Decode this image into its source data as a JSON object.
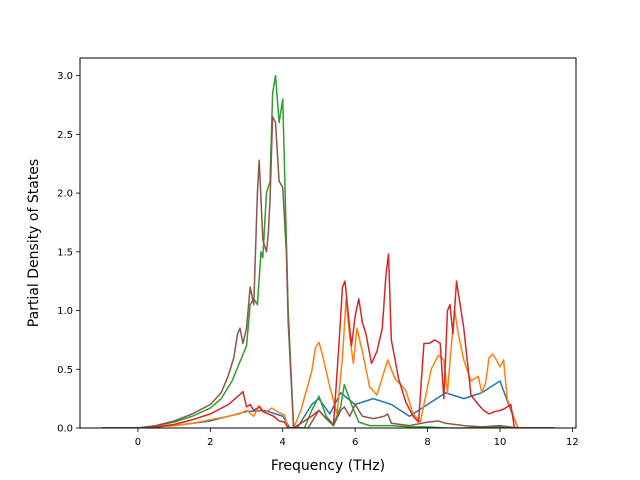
{
  "chart_data": {
    "type": "line",
    "title": "",
    "xlabel": "Frequency (THz)",
    "ylabel": "Partial Density of States",
    "xlim": [
      -1.6,
      12.1
    ],
    "ylim": [
      0.0,
      3.15
    ],
    "xticks": [
      0,
      2,
      4,
      6,
      8,
      10,
      12
    ],
    "xtick_labels": [
      "0",
      "2",
      "4",
      "6",
      "8",
      "10",
      "12"
    ],
    "yticks": [
      0.0,
      0.5,
      1.0,
      1.5,
      2.0,
      2.5,
      3.0
    ],
    "ytick_labels": [
      "0.0",
      "0.5",
      "1.0",
      "1.5",
      "2.0",
      "2.5",
      "3.0"
    ],
    "grid": false,
    "legend": "none",
    "series": [
      {
        "color": "#1f77b4",
        "x": [
          -1.0,
          0.0,
          1.0,
          2.0,
          3.0,
          3.5,
          4.0,
          4.2,
          4.4,
          4.8,
          5.0,
          5.3,
          5.6,
          6.0,
          6.5,
          7.0,
          7.5,
          8.0,
          8.5,
          9.0,
          9.5,
          10.0,
          10.3,
          10.5,
          11.5
        ],
        "y": [
          0.0,
          0.0,
          0.02,
          0.06,
          0.14,
          0.15,
          0.1,
          0.0,
          0.0,
          0.2,
          0.25,
          0.12,
          0.3,
          0.2,
          0.25,
          0.2,
          0.1,
          0.2,
          0.3,
          0.25,
          0.3,
          0.4,
          0.15,
          0.0,
          0.0
        ]
      },
      {
        "color": "#ff7f0e",
        "x": [
          -1.0,
          0.0,
          0.5,
          1.0,
          1.5,
          2.0,
          2.5,
          2.8,
          3.0,
          3.2,
          3.35,
          3.5,
          3.7,
          3.9,
          4.05,
          4.15,
          4.3,
          4.5,
          4.8,
          4.9,
          5.0,
          5.1,
          5.3,
          5.5,
          5.65,
          5.75,
          5.85,
          5.95,
          6.05,
          6.2,
          6.4,
          6.6,
          6.8,
          6.9,
          7.1,
          7.4,
          7.6,
          7.8,
          8.0,
          8.1,
          8.3,
          8.45,
          8.55,
          8.65,
          8.75,
          8.85,
          9.0,
          9.2,
          9.4,
          9.5,
          9.6,
          9.7,
          9.8,
          9.9,
          10.0,
          10.1,
          10.2,
          10.4,
          10.5,
          11.5
        ],
        "y": [
          0.0,
          0.0,
          0.01,
          0.02,
          0.04,
          0.07,
          0.1,
          0.12,
          0.15,
          0.1,
          0.19,
          0.13,
          0.17,
          0.13,
          0.11,
          0.0,
          0.0,
          0.15,
          0.48,
          0.68,
          0.73,
          0.62,
          0.35,
          0.12,
          0.6,
          1.1,
          0.78,
          0.55,
          0.85,
          0.65,
          0.35,
          0.28,
          0.48,
          0.58,
          0.42,
          0.32,
          0.12,
          0.05,
          0.35,
          0.5,
          0.62,
          0.58,
          0.3,
          0.68,
          1.0,
          0.8,
          0.58,
          0.4,
          0.44,
          0.3,
          0.38,
          0.6,
          0.63,
          0.58,
          0.52,
          0.58,
          0.25,
          0.08,
          0.0,
          0.0
        ]
      },
      {
        "color": "#2ca02c",
        "x": [
          -1.0,
          0.0,
          0.5,
          1.0,
          1.5,
          2.0,
          2.3,
          2.6,
          2.8,
          3.0,
          3.1,
          3.2,
          3.3,
          3.4,
          3.45,
          3.55,
          3.65,
          3.72,
          3.8,
          3.9,
          4.0,
          4.1,
          4.15,
          4.3,
          4.6,
          4.8,
          5.0,
          5.2,
          5.4,
          5.6,
          5.7,
          5.9,
          6.1,
          6.4,
          7.0,
          7.5,
          8.0,
          8.5,
          9.0,
          9.5,
          10.0,
          10.5,
          11.5
        ],
        "y": [
          0.0,
          0.0,
          0.02,
          0.05,
          0.1,
          0.17,
          0.25,
          0.4,
          0.55,
          0.7,
          1.05,
          1.1,
          1.05,
          1.5,
          1.45,
          2.0,
          2.1,
          2.85,
          3.0,
          2.6,
          2.8,
          1.6,
          1.0,
          0.0,
          0.0,
          0.15,
          0.27,
          0.1,
          0.03,
          0.18,
          0.37,
          0.2,
          0.05,
          0.02,
          0.02,
          0.01,
          0.01,
          0.0,
          0.0,
          0.01,
          0.01,
          0.0,
          0.0
        ]
      },
      {
        "color": "#d62728",
        "x": [
          -1.0,
          0.0,
          0.5,
          1.0,
          1.5,
          2.0,
          2.5,
          2.8,
          2.9,
          3.0,
          3.1,
          3.2,
          3.35,
          3.45,
          3.6,
          3.75,
          3.9,
          4.05,
          4.15,
          4.3,
          4.8,
          5.0,
          5.2,
          5.4,
          5.55,
          5.65,
          5.72,
          5.8,
          5.9,
          6.0,
          6.1,
          6.2,
          6.3,
          6.45,
          6.6,
          6.75,
          6.85,
          6.92,
          7.0,
          7.2,
          7.4,
          7.6,
          7.75,
          7.9,
          8.05,
          8.2,
          8.35,
          8.45,
          8.55,
          8.62,
          8.7,
          8.8,
          9.0,
          9.2,
          9.4,
          9.55,
          9.7,
          9.85,
          10.0,
          10.1,
          10.2,
          10.3,
          10.4,
          11.5
        ],
        "y": [
          0.0,
          0.0,
          0.01,
          0.03,
          0.07,
          0.12,
          0.2,
          0.28,
          0.31,
          0.18,
          0.2,
          0.15,
          0.18,
          0.14,
          0.12,
          0.1,
          0.06,
          0.05,
          0.0,
          0.0,
          0.1,
          0.15,
          0.08,
          0.02,
          0.7,
          1.2,
          1.25,
          1.0,
          0.7,
          0.95,
          1.1,
          0.9,
          0.8,
          0.55,
          0.65,
          0.85,
          1.3,
          1.48,
          0.75,
          0.42,
          0.22,
          0.1,
          0.05,
          0.72,
          0.72,
          0.75,
          0.72,
          0.25,
          1.0,
          1.05,
          0.8,
          1.25,
          0.85,
          0.28,
          0.2,
          0.15,
          0.12,
          0.14,
          0.15,
          0.16,
          0.18,
          0.2,
          0.0,
          0.0
        ]
      },
      {
        "color": "#8c564b",
        "x": [
          -1.0,
          0.0,
          0.5,
          1.0,
          1.5,
          2.0,
          2.3,
          2.5,
          2.65,
          2.75,
          2.82,
          2.9,
          3.0,
          3.1,
          3.2,
          3.3,
          3.35,
          3.45,
          3.55,
          3.6,
          3.65,
          3.72,
          3.8,
          3.9,
          4.0,
          4.1,
          4.15,
          4.3,
          4.7,
          4.9,
          5.0,
          5.2,
          5.4,
          5.6,
          5.7,
          5.85,
          6.0,
          6.2,
          6.5,
          6.8,
          6.9,
          7.0,
          7.5,
          8.0,
          8.3,
          8.5,
          9.0,
          9.5,
          10.0,
          10.5,
          11.5
        ],
        "y": [
          0.0,
          0.0,
          0.02,
          0.06,
          0.12,
          0.2,
          0.3,
          0.45,
          0.6,
          0.8,
          0.85,
          0.72,
          0.85,
          1.2,
          1.05,
          2.0,
          2.28,
          1.6,
          1.5,
          1.65,
          1.95,
          2.65,
          2.6,
          2.1,
          2.05,
          1.5,
          0.9,
          0.0,
          0.0,
          0.1,
          0.15,
          0.08,
          0.02,
          0.15,
          0.18,
          0.1,
          0.2,
          0.1,
          0.08,
          0.1,
          0.12,
          0.04,
          0.02,
          0.05,
          0.06,
          0.04,
          0.02,
          0.01,
          0.02,
          0.0,
          0.0
        ]
      }
    ]
  }
}
